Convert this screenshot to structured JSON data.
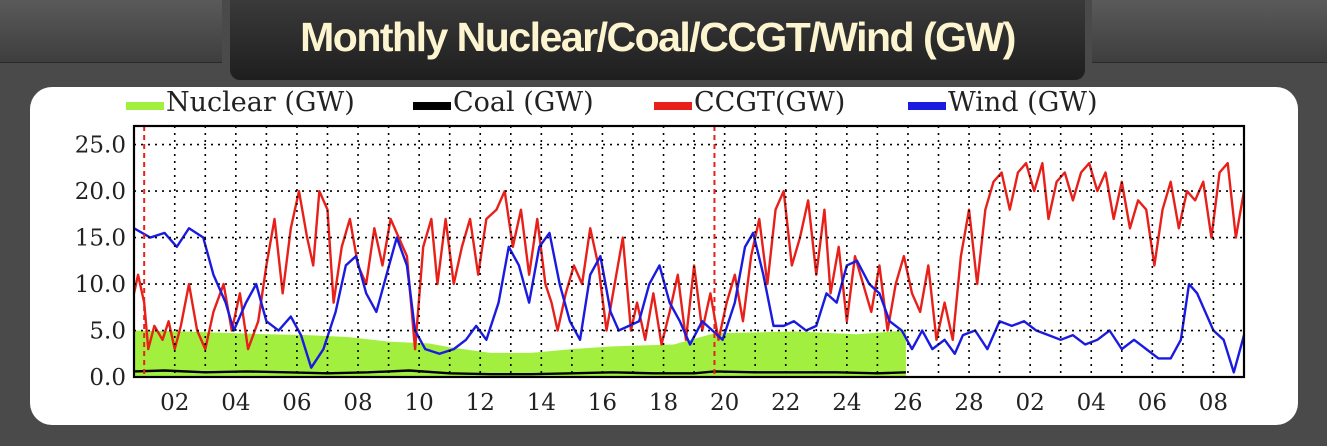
{
  "title": "Monthly Nuclear/Coal/CCGT/Wind (GW)",
  "chart_data": {
    "type": "line",
    "title": "Monthly Nuclear/Coal/CCGT/Wind (GW)",
    "ylim": [
      0,
      27
    ],
    "yticks": [
      "0.0",
      "5.0",
      "10.0",
      "15.0",
      "20.0",
      "25.0"
    ],
    "xtick_labels": [
      "02",
      "04",
      "06",
      "08",
      "10",
      "12",
      "14",
      "16",
      "18",
      "20",
      "22",
      "24",
      "26",
      "28",
      "02",
      "04",
      "06",
      "08"
    ],
    "grid": true,
    "legend_position": "top",
    "month_boundaries": [
      0,
      28
    ],
    "series": [
      {
        "name": "Nuclear (GW)",
        "color": "#a3ef3f",
        "kind": "area",
        "points": [
          [
            -0.5,
            5.0
          ],
          [
            2,
            4.9
          ],
          [
            6,
            4.6
          ],
          [
            8,
            4.5
          ],
          [
            10,
            4.3
          ],
          [
            12,
            3.8
          ],
          [
            14,
            3.6
          ],
          [
            15,
            3.2
          ],
          [
            17,
            2.6
          ],
          [
            19,
            2.6
          ],
          [
            21,
            3.0
          ],
          [
            23,
            3.3
          ],
          [
            26,
            3.5
          ],
          [
            28,
            4.7
          ],
          [
            32,
            4.9
          ],
          [
            35,
            4.6
          ],
          [
            37.4,
            5.0
          ]
        ]
      },
      {
        "name": "Coal (GW)",
        "color": "#000000",
        "kind": "line",
        "points": [
          [
            -0.5,
            0.6
          ],
          [
            1,
            0.7
          ],
          [
            3,
            0.5
          ],
          [
            5,
            0.6
          ],
          [
            7,
            0.5
          ],
          [
            9,
            0.4
          ],
          [
            11,
            0.5
          ],
          [
            13,
            0.7
          ],
          [
            15,
            0.4
          ],
          [
            17,
            0.3
          ],
          [
            19,
            0.3
          ],
          [
            21,
            0.4
          ],
          [
            23,
            0.5
          ],
          [
            25,
            0.4
          ],
          [
            27,
            0.4
          ],
          [
            28,
            0.6
          ],
          [
            30,
            0.5
          ],
          [
            32,
            0.5
          ],
          [
            34,
            0.5
          ],
          [
            36,
            0.4
          ],
          [
            37.4,
            0.5
          ]
        ]
      },
      {
        "name": "CCGT(GW)",
        "color": "#e8201a",
        "kind": "line",
        "points": [
          [
            -0.5,
            9.0
          ],
          [
            -0.3,
            11.0
          ],
          [
            0,
            8.0
          ],
          [
            0.2,
            3.0
          ],
          [
            0.5,
            5.5
          ],
          [
            0.9,
            4.0
          ],
          [
            1.2,
            6.0
          ],
          [
            1.5,
            3.0
          ],
          [
            1.8,
            5.5
          ],
          [
            2.2,
            10.0
          ],
          [
            2.6,
            5.0
          ],
          [
            3,
            3.0
          ],
          [
            3.4,
            7.0
          ],
          [
            3.9,
            10.0
          ],
          [
            4.3,
            5.0
          ],
          [
            4.7,
            9.0
          ],
          [
            5.1,
            3.0
          ],
          [
            5.6,
            6.0
          ],
          [
            6,
            12.0
          ],
          [
            6.4,
            17.0
          ],
          [
            6.8,
            9.0
          ],
          [
            7.2,
            16.0
          ],
          [
            7.6,
            20.0
          ],
          [
            8,
            15.0
          ],
          [
            8.3,
            12.0
          ],
          [
            8.6,
            20.0
          ],
          [
            9,
            18.0
          ],
          [
            9.3,
            8.0
          ],
          [
            9.7,
            14.0
          ],
          [
            10.1,
            17.0
          ],
          [
            10.5,
            12.0
          ],
          [
            10.9,
            10.0
          ],
          [
            11.3,
            16.0
          ],
          [
            11.7,
            12.0
          ],
          [
            12.1,
            17.0
          ],
          [
            12.5,
            15.0
          ],
          [
            12.9,
            13.0
          ],
          [
            13.3,
            3.0
          ],
          [
            13.7,
            14.0
          ],
          [
            14.1,
            17.0
          ],
          [
            14.4,
            10.0
          ],
          [
            14.8,
            17.0
          ],
          [
            15.2,
            10.0
          ],
          [
            15.6,
            14.0
          ],
          [
            16,
            17.0
          ],
          [
            16.4,
            11.0
          ],
          [
            16.8,
            17.0
          ],
          [
            17.3,
            18.0
          ],
          [
            17.7,
            20.0
          ],
          [
            18.1,
            14.0
          ],
          [
            18.5,
            18.0
          ],
          [
            18.9,
            11.0
          ],
          [
            19.3,
            17.0
          ],
          [
            19.7,
            10.0
          ],
          [
            20,
            8.0
          ],
          [
            20.3,
            5.0
          ],
          [
            20.7,
            9.0
          ],
          [
            21.1,
            12.0
          ],
          [
            21.5,
            10.0
          ],
          [
            21.9,
            16.0
          ],
          [
            22.3,
            12.0
          ],
          [
            22.7,
            5.0
          ],
          [
            23.1,
            10.0
          ],
          [
            23.5,
            15.0
          ],
          [
            23.9,
            5.0
          ],
          [
            24.2,
            8.0
          ],
          [
            24.6,
            4.0
          ],
          [
            25,
            9.0
          ],
          [
            25.4,
            3.5
          ],
          [
            25.8,
            7.0
          ],
          [
            26.2,
            11.0
          ],
          [
            26.6,
            4.0
          ],
          [
            27,
            12.0
          ],
          [
            27.4,
            5.0
          ],
          [
            27.8,
            9.0
          ],
          [
            28.2,
            4.0
          ],
          [
            28.6,
            8.0
          ],
          [
            29,
            11.0
          ],
          [
            29.4,
            6.0
          ],
          [
            29.8,
            13.0
          ],
          [
            30.2,
            17.0
          ],
          [
            30.6,
            10.0
          ],
          [
            31,
            18.0
          ],
          [
            31.4,
            20.0
          ],
          [
            31.8,
            12.0
          ],
          [
            32.2,
            15.0
          ],
          [
            32.6,
            19.0
          ],
          [
            33,
            11.0
          ],
          [
            33.4,
            18.0
          ],
          [
            33.7,
            9.0
          ],
          [
            34.1,
            14.0
          ],
          [
            34.5,
            6.0
          ],
          [
            34.9,
            13.0
          ],
          [
            35.3,
            10.0
          ],
          [
            35.7,
            7.0
          ],
          [
            36.1,
            12.0
          ],
          [
            36.5,
            5.0
          ],
          [
            36.9,
            10.0
          ],
          [
            37.3,
            13.0
          ],
          [
            37.7,
            9.0
          ],
          [
            38.1,
            7.0
          ],
          [
            38.5,
            12.0
          ],
          [
            38.9,
            4.0
          ],
          [
            39.3,
            8.0
          ],
          [
            39.7,
            4.0
          ],
          [
            40.1,
            13.0
          ],
          [
            40.5,
            18.0
          ],
          [
            40.9,
            10.0
          ],
          [
            41.3,
            18.0
          ],
          [
            41.7,
            21.0
          ],
          [
            42.1,
            22.0
          ],
          [
            42.5,
            18.0
          ],
          [
            42.9,
            22.0
          ],
          [
            43.3,
            23.0
          ],
          [
            43.7,
            20.0
          ],
          [
            44.1,
            23.0
          ],
          [
            44.4,
            17.0
          ],
          [
            44.8,
            21.0
          ],
          [
            45.2,
            22.0
          ],
          [
            45.6,
            19.0
          ],
          [
            46,
            22.0
          ],
          [
            46.4,
            23.0
          ],
          [
            46.8,
            20.0
          ],
          [
            47.2,
            22.0
          ],
          [
            47.6,
            17.0
          ],
          [
            48,
            21.0
          ],
          [
            48.4,
            16.0
          ],
          [
            48.8,
            19.0
          ],
          [
            49.2,
            18.0
          ],
          [
            49.6,
            12.0
          ],
          [
            50,
            18.0
          ],
          [
            50.4,
            21.0
          ],
          [
            50.8,
            16.0
          ],
          [
            51.2,
            20.0
          ],
          [
            51.6,
            19.0
          ],
          [
            52,
            21.0
          ],
          [
            52.4,
            15.0
          ],
          [
            52.8,
            22.0
          ],
          [
            53.2,
            23.0
          ],
          [
            53.6,
            15.0
          ],
          [
            54,
            20.0
          ]
        ]
      },
      {
        "name": "Wind (GW)",
        "color": "#1a1ae0",
        "kind": "line",
        "points": [
          [
            -0.5,
            16.0
          ],
          [
            0.3,
            15.0
          ],
          [
            1,
            15.5
          ],
          [
            1.6,
            14.0
          ],
          [
            2.2,
            16.0
          ],
          [
            2.9,
            15.0
          ],
          [
            3.4,
            11.0
          ],
          [
            4,
            8.0
          ],
          [
            4.4,
            5.0
          ],
          [
            5,
            8.0
          ],
          [
            5.5,
            10.0
          ],
          [
            6,
            6.0
          ],
          [
            6.6,
            5.0
          ],
          [
            7.2,
            6.5
          ],
          [
            7.7,
            4.5
          ],
          [
            8.2,
            1.0
          ],
          [
            8.8,
            3.0
          ],
          [
            9.4,
            7.0
          ],
          [
            9.9,
            12.0
          ],
          [
            10.4,
            13.0
          ],
          [
            10.9,
            9.0
          ],
          [
            11.4,
            7.0
          ],
          [
            11.9,
            11.0
          ],
          [
            12.4,
            15.0
          ],
          [
            12.9,
            12.0
          ],
          [
            13.3,
            5.0
          ],
          [
            13.8,
            3.0
          ],
          [
            14.5,
            2.5
          ],
          [
            15.2,
            3.0
          ],
          [
            15.8,
            4.0
          ],
          [
            16.3,
            5.5
          ],
          [
            16.8,
            4.0
          ],
          [
            17.4,
            8.0
          ],
          [
            17.9,
            14.0
          ],
          [
            18.4,
            12.0
          ],
          [
            18.9,
            8.0
          ],
          [
            19.4,
            14.0
          ],
          [
            19.9,
            15.5
          ],
          [
            20.4,
            10.0
          ],
          [
            20.9,
            6.0
          ],
          [
            21.4,
            4.0
          ],
          [
            21.9,
            11.0
          ],
          [
            22.4,
            13.0
          ],
          [
            22.9,
            7.0
          ],
          [
            23.3,
            5.0
          ],
          [
            23.8,
            5.5
          ],
          [
            24.3,
            6.0
          ],
          [
            24.8,
            10.0
          ],
          [
            25.3,
            12.0
          ],
          [
            25.8,
            8.0
          ],
          [
            26.3,
            6.0
          ],
          [
            26.8,
            3.5
          ],
          [
            27.4,
            6.0
          ],
          [
            27.9,
            5.0
          ],
          [
            28.4,
            4.0
          ],
          [
            29,
            8.0
          ],
          [
            29.5,
            14.0
          ],
          [
            29.9,
            15.5
          ],
          [
            30.4,
            11.0
          ],
          [
            30.9,
            5.5
          ],
          [
            31.4,
            5.5
          ],
          [
            31.9,
            6.0
          ],
          [
            32.5,
            5.0
          ],
          [
            33,
            5.5
          ],
          [
            33.5,
            9.0
          ],
          [
            34,
            8.0
          ],
          [
            34.5,
            12.0
          ],
          [
            35,
            12.5
          ],
          [
            35.6,
            10.0
          ],
          [
            36.1,
            9.0
          ],
          [
            36.6,
            6.0
          ],
          [
            37.2,
            5.0
          ],
          [
            37.7,
            3.0
          ],
          [
            38.2,
            5.0
          ],
          [
            38.7,
            3.0
          ],
          [
            39.3,
            4.0
          ],
          [
            39.8,
            2.5
          ],
          [
            40.2,
            4.5
          ],
          [
            40.8,
            5.0
          ],
          [
            41.4,
            3.0
          ],
          [
            42,
            6.0
          ],
          [
            42.6,
            5.5
          ],
          [
            43.2,
            6.0
          ],
          [
            43.8,
            5.0
          ],
          [
            44.4,
            4.5
          ],
          [
            45,
            4.0
          ],
          [
            45.6,
            4.5
          ],
          [
            46.2,
            3.5
          ],
          [
            46.8,
            4.0
          ],
          [
            47.4,
            5.0
          ],
          [
            48,
            3.0
          ],
          [
            48.6,
            4.0
          ],
          [
            49.2,
            3.0
          ],
          [
            49.8,
            2.0
          ],
          [
            50.4,
            2.0
          ],
          [
            50.9,
            4.0
          ],
          [
            51.3,
            10.0
          ],
          [
            51.7,
            9.0
          ],
          [
            52.1,
            7.0
          ],
          [
            52.5,
            5.0
          ],
          [
            53,
            4.0
          ],
          [
            53.5,
            0.5
          ],
          [
            54,
            4.5
          ]
        ]
      }
    ]
  }
}
